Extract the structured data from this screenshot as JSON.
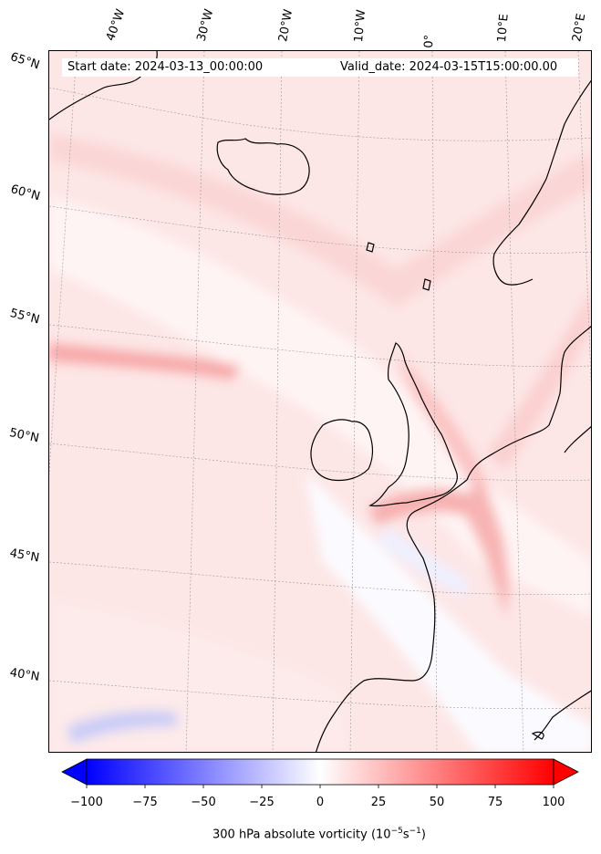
{
  "header": {
    "start_date": "Start date: 2024-03-13_00:00:00",
    "valid_date": "Valid_date: 2024-03-15T15:00:00.00"
  },
  "longitude_labels": [
    "40°W",
    "30°W",
    "20°W",
    "10°W",
    "0°",
    "10°E",
    "20°E"
  ],
  "latitude_labels": [
    "65°N",
    "60°N",
    "55°N",
    "50°N",
    "45°N",
    "40°N"
  ],
  "colorbar": {
    "ticks": [
      "−100",
      "−75",
      "−50",
      "−25",
      "0",
      "25",
      "50",
      "75",
      "100"
    ],
    "label_prefix": "300 hPa absolute vorticity (10",
    "label_exp1": "−5",
    "label_mid": "s",
    "label_exp2": "−1",
    "label_suffix": ")",
    "min": -100,
    "max": 100,
    "cmap": "bwr",
    "extend": "both"
  },
  "colors": {
    "negative": "#0000ff",
    "zero": "#ffffff",
    "positive": "#ff0000",
    "coastline": "#000000",
    "gridline": "#999999"
  }
}
